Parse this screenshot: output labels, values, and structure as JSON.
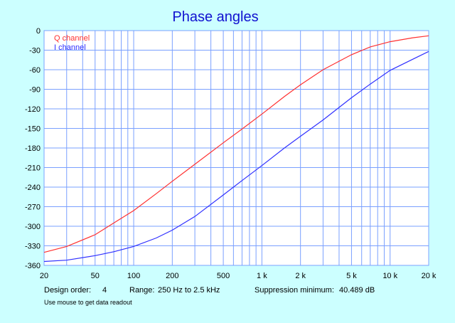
{
  "chart_data": {
    "type": "line",
    "title": "Phase angles",
    "xlabel": "",
    "ylabel": "",
    "xscale": "log",
    "xlim": [
      20,
      20000
    ],
    "ylim": [
      -360,
      0
    ],
    "grid": true,
    "legend_position": "top-left",
    "x_tick_labels": [
      {
        "value": 20,
        "label": "20"
      },
      {
        "value": 50,
        "label": "50"
      },
      {
        "value": 100,
        "label": "100"
      },
      {
        "value": 200,
        "label": "200"
      },
      {
        "value": 500,
        "label": "500"
      },
      {
        "value": 1000,
        "label": "1 k"
      },
      {
        "value": 2000,
        "label": "2 k"
      },
      {
        "value": 5000,
        "label": "5 k"
      },
      {
        "value": 10000,
        "label": "10 k"
      },
      {
        "value": 20000,
        "label": "20 k"
      }
    ],
    "y_ticks": [
      0,
      -30,
      -60,
      -90,
      -120,
      -150,
      -180,
      -210,
      -240,
      -270,
      -300,
      -330,
      -360
    ],
    "series": [
      {
        "name": "Q channel",
        "color": "#ff3030",
        "x": [
          20,
          30,
          50,
          70,
          100,
          150,
          200,
          300,
          500,
          700,
          1000,
          1500,
          2000,
          3000,
          5000,
          7000,
          10000,
          15000,
          20000
        ],
        "y": [
          -340,
          -331,
          -313,
          -295,
          -276,
          -250,
          -231,
          -205,
          -172,
          -151,
          -128,
          -101,
          -83,
          -60,
          -37,
          -25,
          -17,
          -11,
          -8
        ]
      },
      {
        "name": "I channel",
        "color": "#3030ff",
        "x": [
          20,
          30,
          50,
          70,
          100,
          150,
          200,
          300,
          500,
          700,
          1000,
          1500,
          2000,
          3000,
          5000,
          7000,
          10000,
          15000,
          20000
        ],
        "y": [
          -354,
          -352,
          -345,
          -339,
          -331,
          -318,
          -306,
          -285,
          -252,
          -230,
          -207,
          -180,
          -162,
          -137,
          -103,
          -82,
          -61,
          -44,
          -32
        ]
      }
    ]
  },
  "info": {
    "design_order_label": "Design order:",
    "design_order_value": "4",
    "range_label": "Range:",
    "range_value": "250 Hz to  2.5 kHz",
    "suppression_label": "Suppression minimum:",
    "suppression_value": "40.489 dB"
  },
  "hint": "Use mouse to get data readout",
  "colors": {
    "background": "#ccffff",
    "plot_background": "#ffffff",
    "grid": "#7aa0ff",
    "title": "#1010d0"
  }
}
